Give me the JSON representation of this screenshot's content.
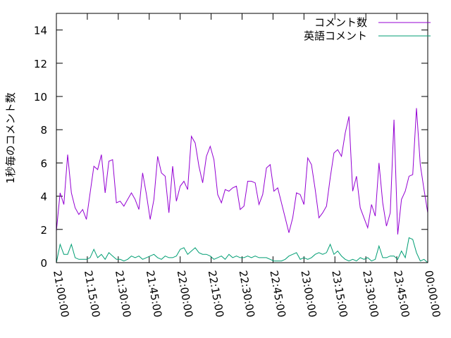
{
  "chart_data": {
    "type": "line",
    "title": "",
    "xlabel": "",
    "ylabel": "1秒毎のコメント数",
    "ylim": [
      0,
      15
    ],
    "yticks": [
      0,
      2,
      4,
      6,
      8,
      10,
      12,
      14
    ],
    "xlim": [
      "21:00:00",
      "00:00:00"
    ],
    "xticks": [
      "21:00:00",
      "21:15:00",
      "21:30:00",
      "21:45:00",
      "22:00:00",
      "22:15:00",
      "22:30:00",
      "22:45:00",
      "23:00:00",
      "23:15:00",
      "23:30:00",
      "23:45:00",
      "00:00:00"
    ],
    "grid": false,
    "legend_position": "top-right",
    "x_interval_minutes": 1.5,
    "series": [
      {
        "name": "コメント数",
        "color": "#9400d3",
        "values": [
          1.9,
          4.2,
          3.5,
          6.5,
          4.2,
          3.3,
          2.9,
          3.2,
          2.6,
          4.2,
          5.8,
          5.6,
          6.5,
          4.2,
          6.1,
          6.2,
          3.6,
          3.7,
          3.4,
          3.8,
          4.2,
          3.8,
          3.2,
          5.4,
          4.1,
          2.6,
          3.8,
          6.4,
          5.4,
          5.2,
          3.0,
          5.8,
          3.7,
          4.6,
          4.9,
          4.4,
          7.6,
          7.2,
          5.8,
          4.8,
          6.4,
          7.0,
          6.2,
          4.1,
          3.6,
          4.4,
          4.3,
          4.5,
          4.6,
          3.2,
          3.4,
          4.9,
          4.9,
          4.8,
          3.5,
          4.1,
          5.7,
          5.9,
          4.3,
          4.5,
          3.6,
          2.7,
          1.8,
          2.7,
          4.2,
          4.1,
          3.5,
          6.3,
          5.9,
          4.4,
          2.7,
          3.0,
          3.4,
          5.1,
          6.6,
          6.8,
          6.4,
          7.8,
          8.8,
          4.3,
          5.2,
          3.3,
          2.7,
          2.1,
          3.5,
          2.8,
          6.0,
          3.6,
          2.2,
          3.0,
          8.6,
          1.7,
          3.8,
          4.3,
          5.2,
          5.3,
          9.3,
          5.9,
          4.4,
          3.0
        ]
      },
      {
        "name": "英語コメント",
        "color": "#009e73",
        "values": [
          0.0,
          1.1,
          0.5,
          0.5,
          1.1,
          0.3,
          0.2,
          0.2,
          0.2,
          0.3,
          0.8,
          0.3,
          0.5,
          0.2,
          0.6,
          0.4,
          0.2,
          0.2,
          0.1,
          0.2,
          0.4,
          0.3,
          0.4,
          0.2,
          0.3,
          0.4,
          0.5,
          0.3,
          0.2,
          0.4,
          0.3,
          0.3,
          0.4,
          0.8,
          0.9,
          0.5,
          0.7,
          0.9,
          0.6,
          0.5,
          0.5,
          0.4,
          0.2,
          0.3,
          0.4,
          0.2,
          0.5,
          0.3,
          0.4,
          0.3,
          0.3,
          0.4,
          0.3,
          0.4,
          0.3,
          0.3,
          0.3,
          0.2,
          0.1,
          0.1,
          0.1,
          0.2,
          0.4,
          0.5,
          0.6,
          0.2,
          0.3,
          0.2,
          0.3,
          0.5,
          0.6,
          0.5,
          0.6,
          1.1,
          0.5,
          0.7,
          0.4,
          0.2,
          0.1,
          0.2,
          0.1,
          0.3,
          0.2,
          0.3,
          0.1,
          0.2,
          1.0,
          0.3,
          0.3,
          0.4,
          0.4,
          0.2,
          0.7,
          0.3,
          1.5,
          1.4,
          0.6,
          0.1,
          0.2,
          0.0
        ]
      }
    ]
  }
}
